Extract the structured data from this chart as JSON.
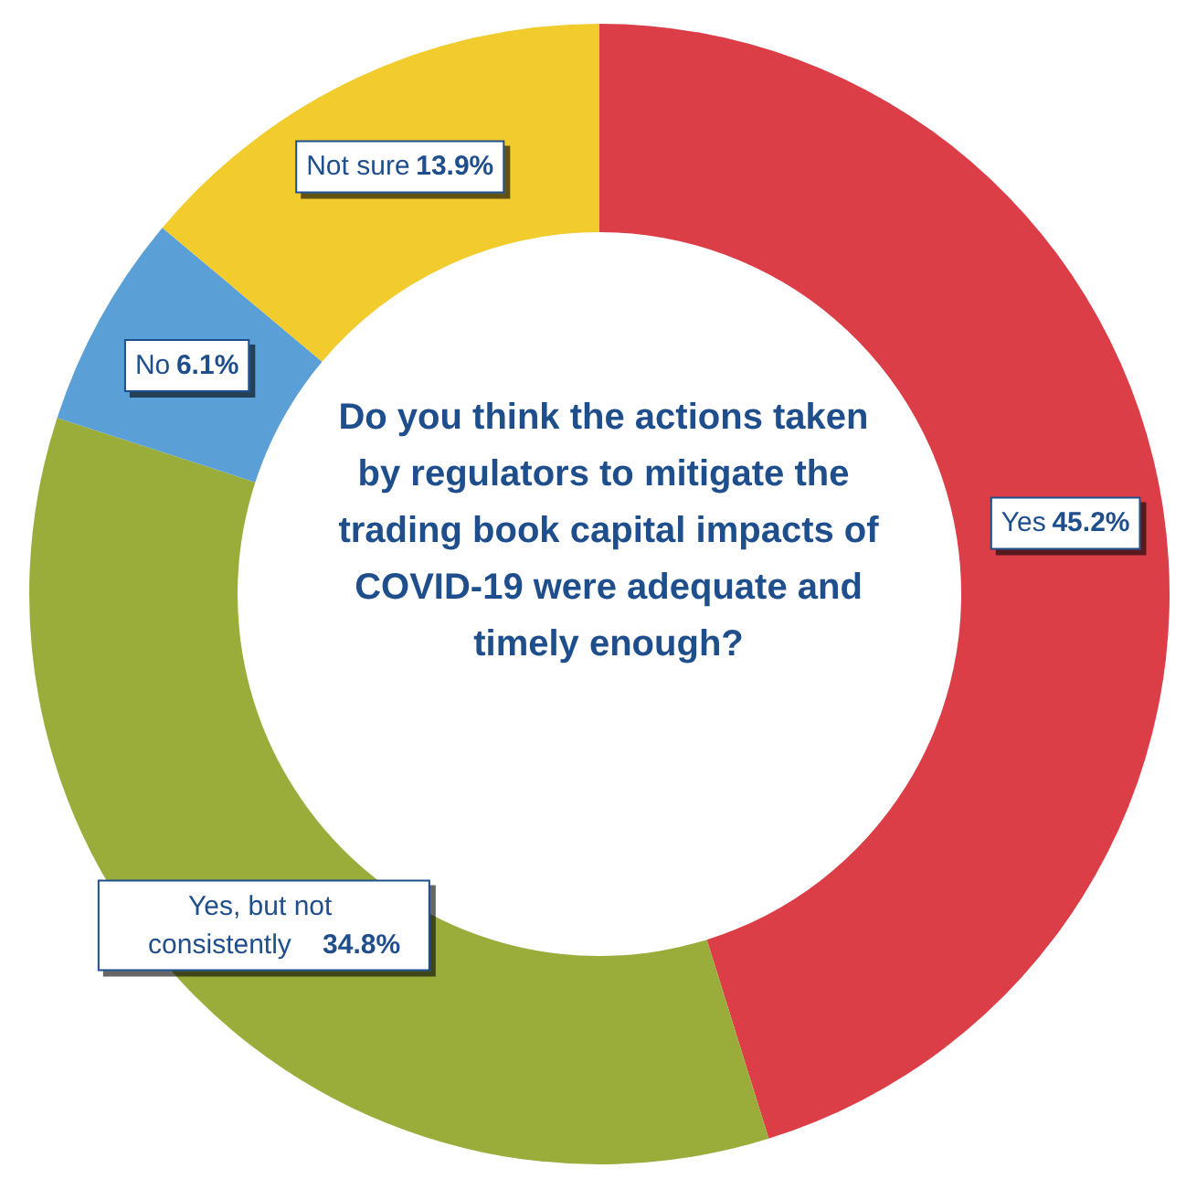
{
  "chart_data": {
    "type": "donut",
    "title": "Do you think the actions taken by regulators to mitigate the trading book capital impacts of COVID-19 were adequate and timely enough?",
    "categories": [
      "Yes",
      "Yes, but not consistently",
      "No",
      "Not sure"
    ],
    "values": [
      45.2,
      34.8,
      6.1,
      13.9
    ],
    "value_labels": [
      "45.2%",
      "34.8%",
      "6.1%",
      "13.9%"
    ],
    "colors": [
      "#dc3e48",
      "#9aad3b",
      "#5b9fd7",
      "#f2cb2d"
    ],
    "legend": false
  }
}
